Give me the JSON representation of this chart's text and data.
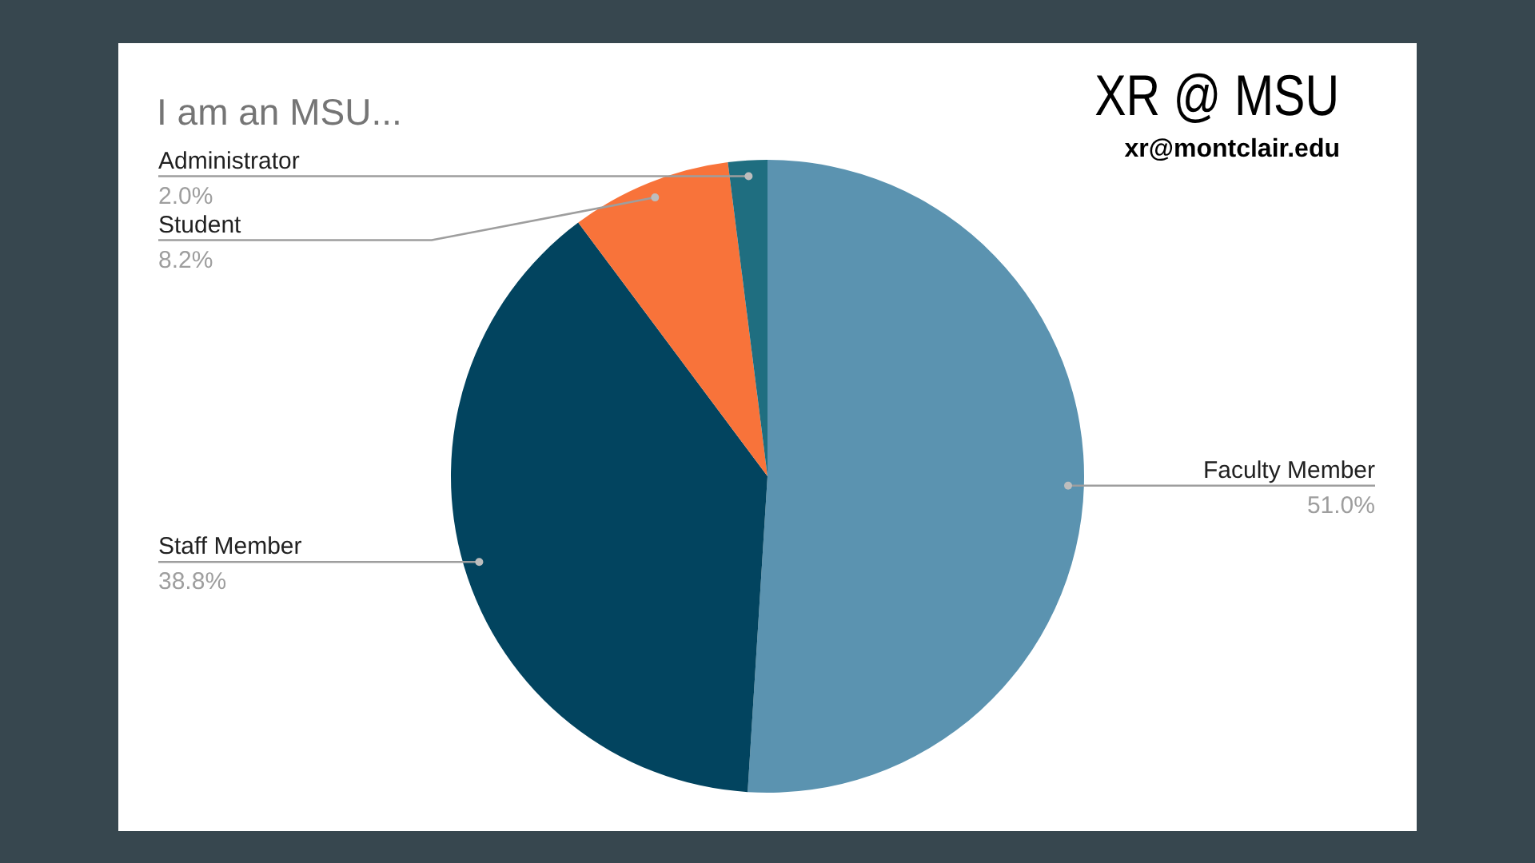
{
  "chart_data": {
    "type": "pie",
    "title": "I am an MSU...",
    "categories": [
      "Faculty Member",
      "Staff Member",
      "Student",
      "Administrator"
    ],
    "values": [
      51.0,
      38.8,
      8.2,
      2.0
    ],
    "value_labels": [
      "51.0%",
      "38.8%",
      "8.2%",
      "2.0%"
    ],
    "colors": [
      "#5b93b0",
      "#02445f",
      "#f8733a",
      "#1f6e80"
    ],
    "legend": false,
    "annotations": [
      "XR @ MSU",
      "xr@montclair.edu"
    ]
  }
}
